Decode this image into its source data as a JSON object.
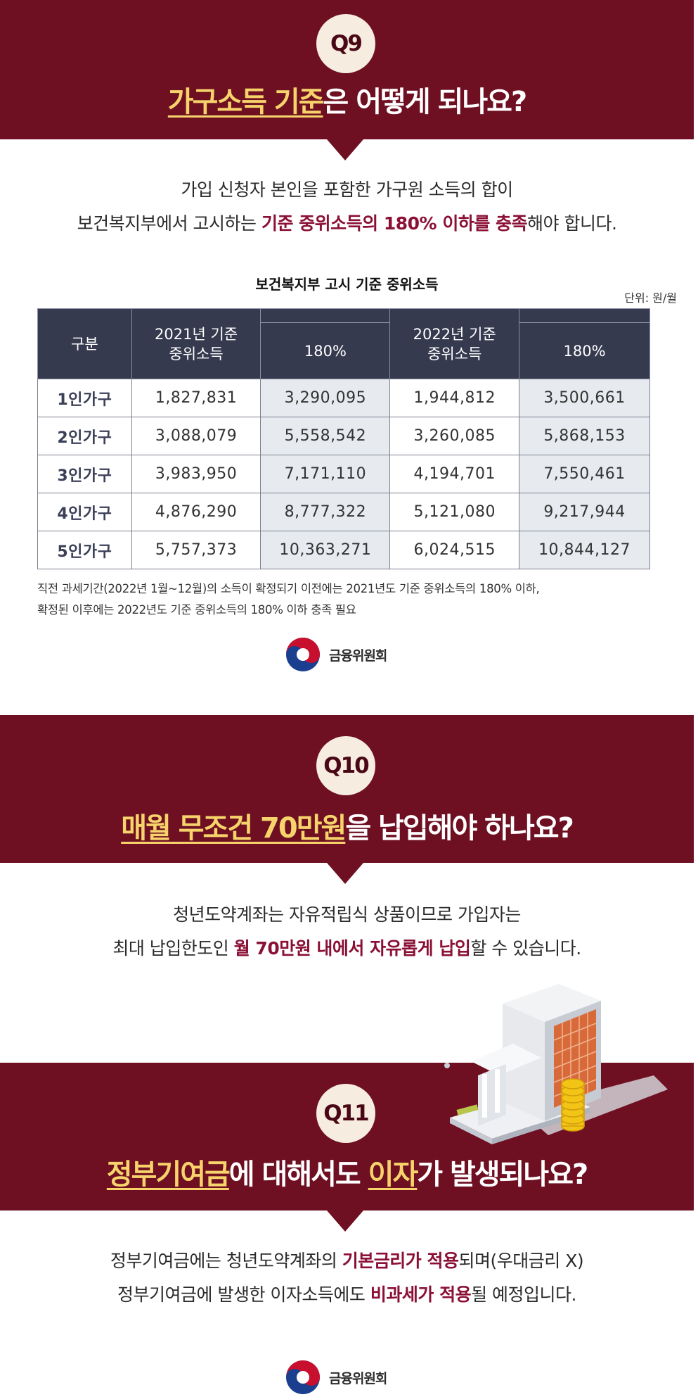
{
  "q9": {
    "badge": "Q9",
    "title_hl": "가구소득 기준",
    "title_rest": "은 어떻게 되나요?",
    "line1": "가입 신청자 본인을 포함한 가구원 소득의 합이",
    "line2_a": "보건복지부에서 고시하는 ",
    "line2_em": "기준 중위소득의 180% 이하를 충족",
    "line2_b": "해야 합니다."
  },
  "table": {
    "title": "보건복지부 고시 기준 중위소득",
    "unit": "단위: 원/월",
    "headers": {
      "category": "구분",
      "y2021_l1": "2021년 기준",
      "y2021_l2": "중위소득",
      "pct_2021": "180%",
      "y2022_l1": "2022년 기준",
      "y2022_l2": "중위소득",
      "pct_2022": "180%"
    },
    "rows": [
      {
        "label": "1인가구",
        "a": "1,827,831",
        "b": "3,290,095",
        "c": "1,944,812",
        "d": "3,500,661"
      },
      {
        "label": "2인가구",
        "a": "3,088,079",
        "b": "5,558,542",
        "c": "3,260,085",
        "d": "5,868,153"
      },
      {
        "label": "3인가구",
        "a": "3,983,950",
        "b": "7,171,110",
        "c": "4,194,701",
        "d": "7,550,461"
      },
      {
        "label": "4인가구",
        "a": "4,876,290",
        "b": "8,777,322",
        "c": "5,121,080",
        "d": "9,217,944"
      },
      {
        "label": "5인가구",
        "a": "5,757,373",
        "b": "10,363,271",
        "c": "6,024,515",
        "d": "10,844,127"
      }
    ],
    "note1": "직전 과세기간(2022년 1월~12월)의 소득이 확정되기 이전에는 2021년도 기준 중위소득의 180% 이하,",
    "note2": "확정된 이후에는 2022년도 기준 중위소득의 180% 이하 충족 필요"
  },
  "logo": {
    "name": "금융위원회"
  },
  "q10": {
    "badge": "Q10",
    "title_hl": "매월 무조건 70만원",
    "title_rest": "을 납입해야 하나요?",
    "line1": "청년도약계좌는 자유적립식 상품이므로 가입자는",
    "line2_a": "최대 납입한도인 ",
    "line2_em": "월 70만원 내에서 자유롭게 납입",
    "line2_b": "할 수 있습니다."
  },
  "q11": {
    "badge": "Q11",
    "title_hl1": "정부기여금",
    "title_mid": "에 대해서도 ",
    "title_hl2": "이자",
    "title_rest": "가 발생되나요?",
    "line1_a": "정부기여금에는 청년도약계좌의 ",
    "line1_em": "기본금리가 적용",
    "line1_b": "되며(우대금리 X)",
    "line2_a": "정부기여금에 발생한 이자소득에도 ",
    "line2_em": "비과세가 적용",
    "line2_b": "될 예정입니다."
  },
  "colors": {
    "band": "#6e0f22",
    "highlight": "#f6d36b",
    "emphasis": "#8a1035",
    "table_header": "#363a4f"
  },
  "icons": [
    "taeguk-logo-icon",
    "bank-building-icon",
    "coin-stack-icon"
  ]
}
